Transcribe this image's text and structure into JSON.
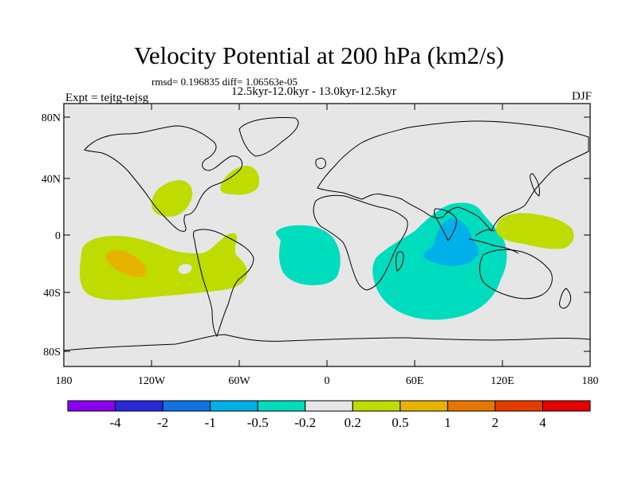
{
  "title": "Velocity Potential at 200 hPa (km2/s)",
  "stats": "rmsd= 0.196835 diff= 1.06563e-05",
  "experiment": "Expt = tejtg-tejsg",
  "period": "12.5kyr-12.0kyr - 13.0kyr-12.5kyr",
  "season": "DJF",
  "lat_ticks": [
    "80N",
    "40N",
    "0",
    "40S",
    "80S"
  ],
  "lon_ticks": [
    "180",
    "120W",
    "60W",
    "0",
    "60E",
    "120E",
    "180"
  ],
  "colorbar": {
    "labels": [
      "-4",
      "-2",
      "-1",
      "-0.5",
      "-0.2",
      "0.2",
      "0.5",
      "1",
      "2",
      "4"
    ],
    "colors": [
      "#8a00ee",
      "#2828d8",
      "#0f74e0",
      "#00b0e8",
      "#00dcbe",
      "#e6e6e6",
      "#bedc00",
      "#e6b400",
      "#e67800",
      "#e63c00",
      "#e60000"
    ]
  },
  "palette": {
    "ocean_bg": "#e6e6e6",
    "land_line": "#000000"
  }
}
